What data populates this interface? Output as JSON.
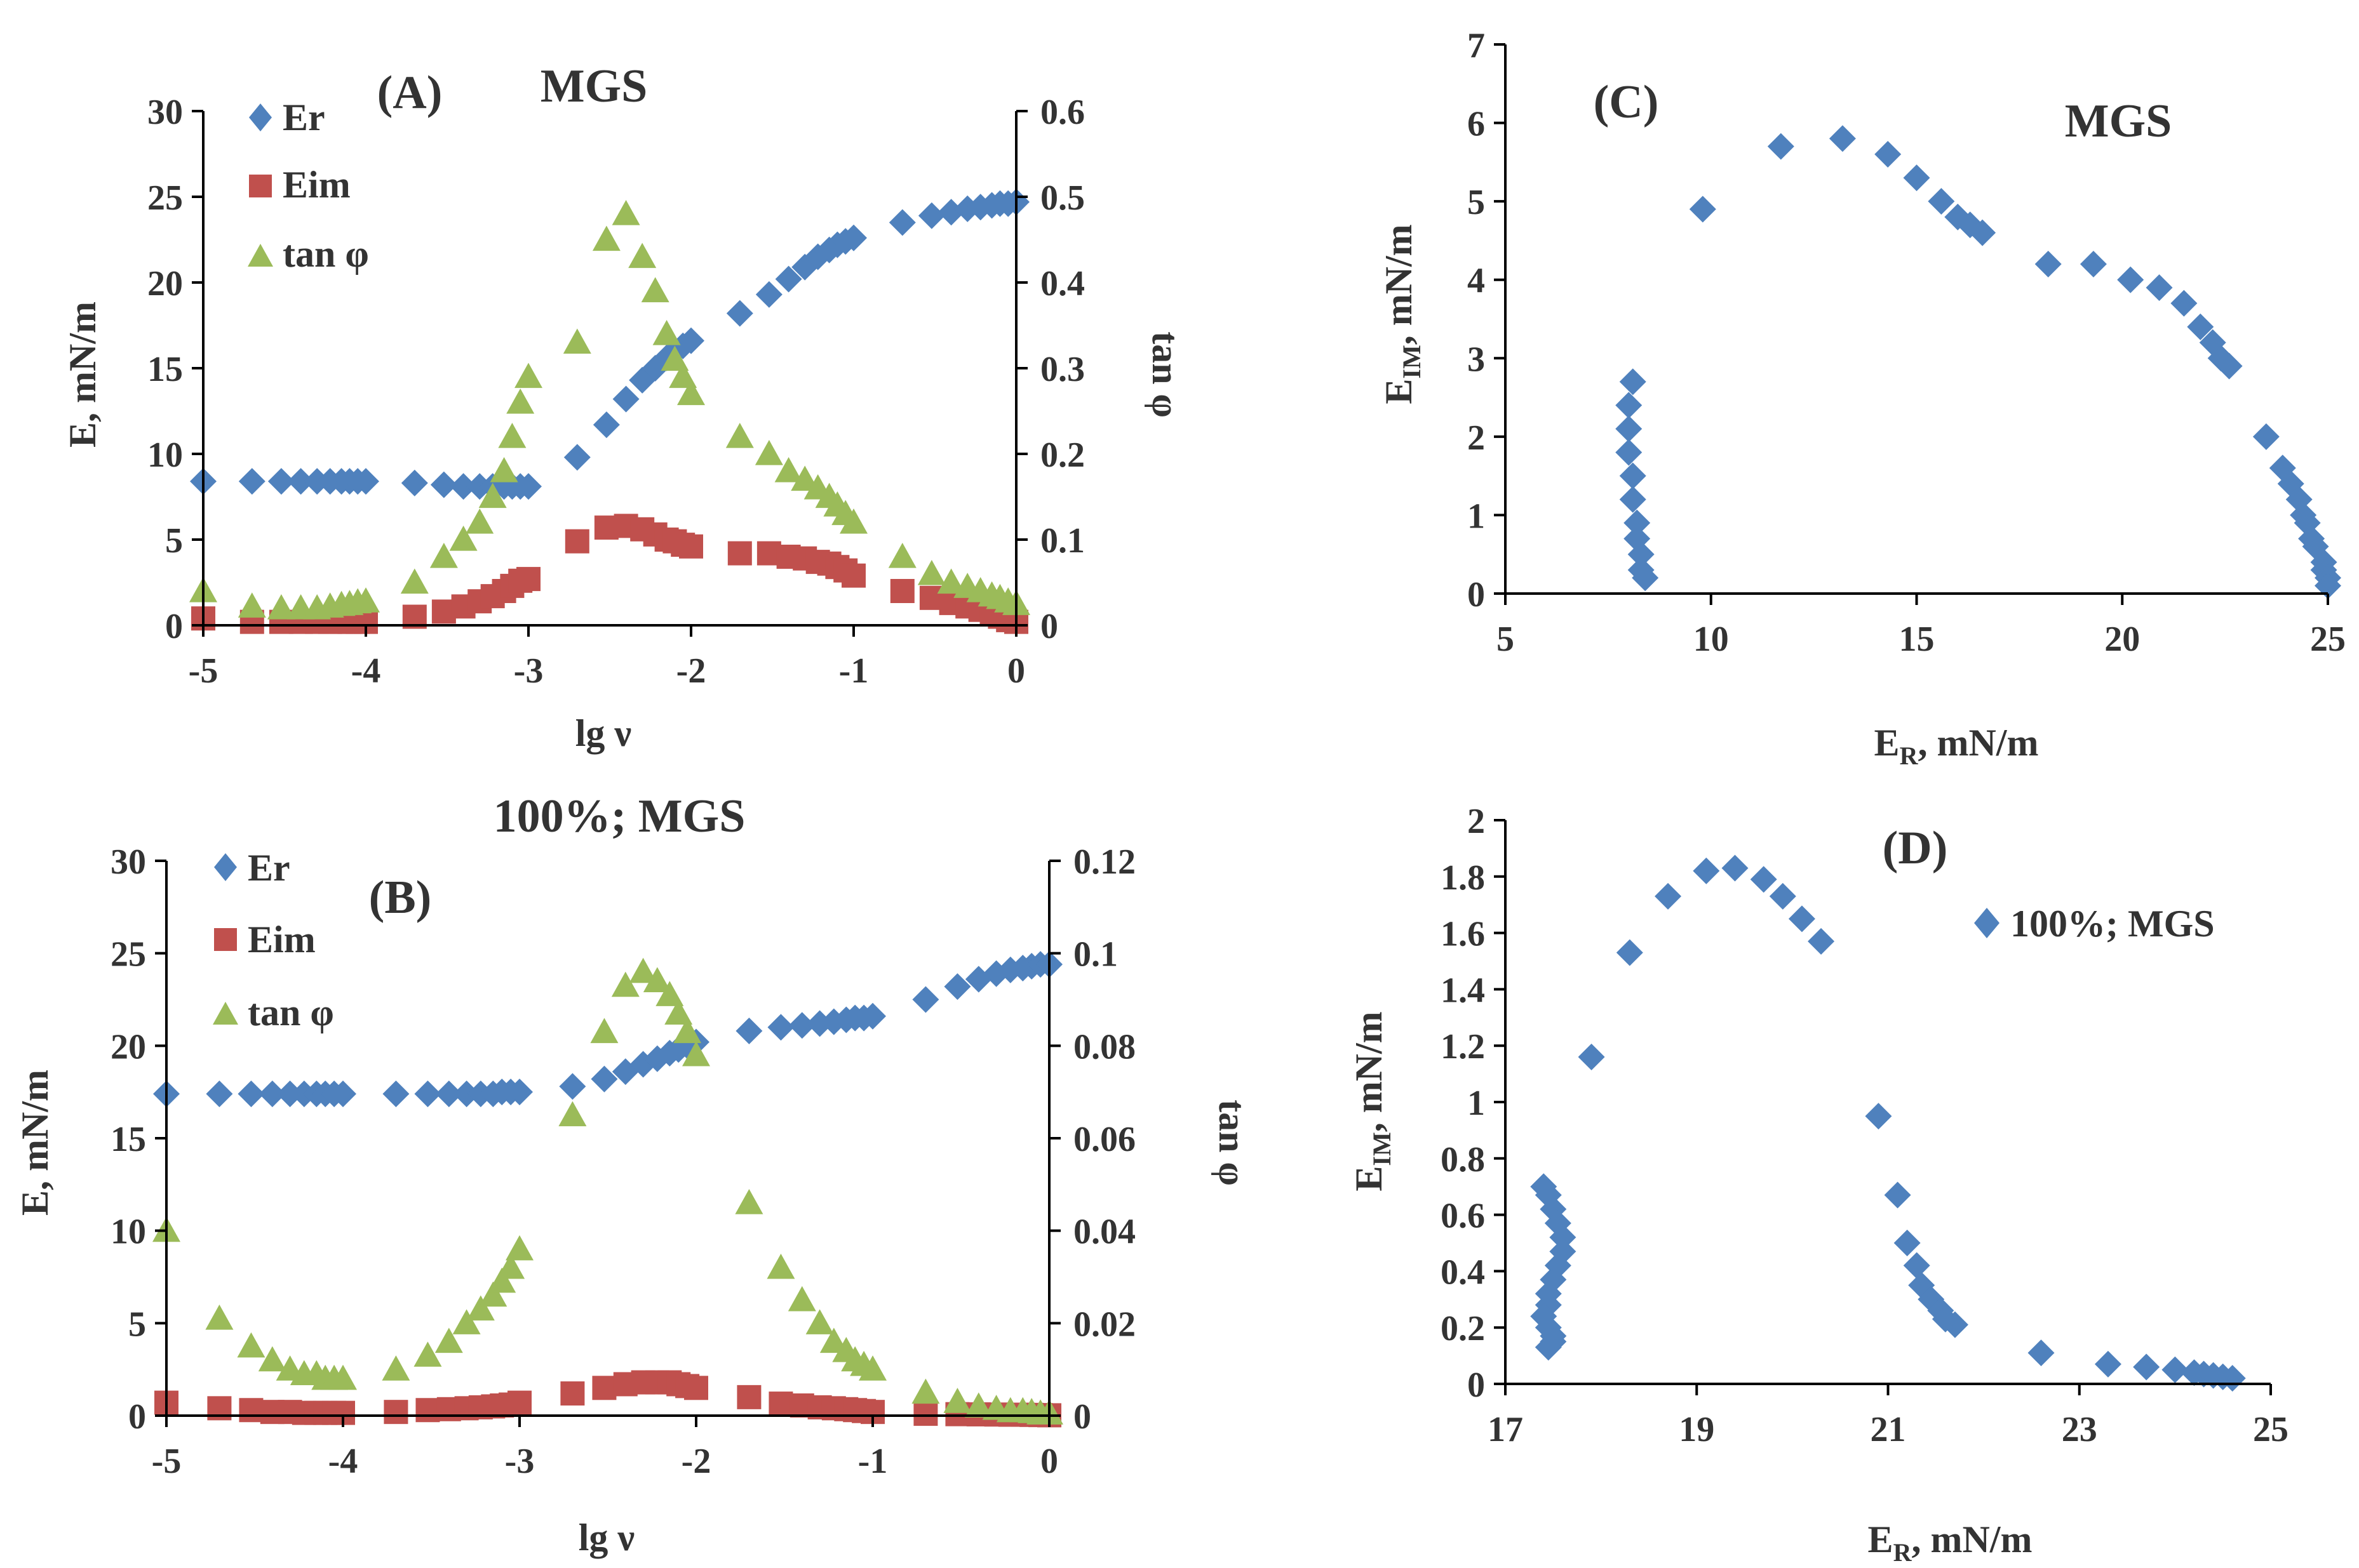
{
  "colors": {
    "er": "#4f81bd",
    "eim": "#c0504d",
    "tan": "#9bbb59",
    "text": "#333333",
    "axis": "#000000"
  },
  "chart_data": [
    {
      "id": "A",
      "type": "scatter",
      "panel_label": "(A)",
      "title": "MGS",
      "xlabel": "lg ν",
      "ylabel": "E, mN/m",
      "y2label": "tan φ",
      "xlim": [
        -5,
        0
      ],
      "ylim": [
        0,
        30
      ],
      "y2lim": [
        0,
        0.6
      ],
      "xticks": [
        "-5",
        "-4",
        "-3",
        "-2",
        "-1",
        "0"
      ],
      "yticks": [
        "0",
        "5",
        "10",
        "15",
        "20",
        "25",
        "30"
      ],
      "y2ticks": [
        "0",
        "0.1",
        "0.2",
        "0.3",
        "0.4",
        "0.5",
        "0.6"
      ],
      "legend": [
        "Er",
        "Eim",
        "tan φ"
      ],
      "series": [
        {
          "name": "Er",
          "marker": "diamond",
          "axis": "left",
          "x": [
            -5,
            -4.7,
            -4.52,
            -4.4,
            -4.3,
            -4.22,
            -4.15,
            -4.1,
            -4.05,
            -4,
            -3.7,
            -3.52,
            -3.4,
            -3.3,
            -3.22,
            -3.15,
            -3.1,
            -3.05,
            -3,
            -2.7,
            -2.52,
            -2.4,
            -2.3,
            -2.22,
            -2.15,
            -2.1,
            -2.05,
            -2,
            -1.7,
            -1.52,
            -1.4,
            -1.3,
            -1.22,
            -1.15,
            -1.1,
            -1.05,
            -1,
            -0.7,
            -0.52,
            -0.4,
            -0.3,
            -0.22,
            -0.15,
            -0.1,
            -0.05,
            0
          ],
          "y": [
            8.4,
            8.4,
            8.4,
            8.4,
            8.4,
            8.4,
            8.4,
            8.4,
            8.4,
            8.4,
            8.3,
            8.2,
            8.1,
            8.1,
            8.1,
            8.1,
            8.1,
            8.1,
            8.1,
            9.8,
            11.7,
            13.2,
            14.3,
            15.0,
            15.6,
            16.0,
            16.3,
            16.6,
            18.2,
            19.3,
            20.2,
            20.9,
            21.5,
            21.9,
            22.2,
            22.4,
            22.6,
            23.5,
            23.9,
            24.1,
            24.3,
            24.4,
            24.5,
            24.6,
            24.6,
            24.7
          ]
        },
        {
          "name": "Eim",
          "marker": "square",
          "axis": "left",
          "x": [
            -5,
            -4.7,
            -4.52,
            -4.4,
            -4.3,
            -4.22,
            -4.15,
            -4.1,
            -4.05,
            -4,
            -3.7,
            -3.52,
            -3.4,
            -3.3,
            -3.22,
            -3.15,
            -3.1,
            -3.05,
            -3,
            -2.7,
            -2.52,
            -2.4,
            -2.3,
            -2.22,
            -2.15,
            -2.1,
            -2.05,
            -2,
            -1.7,
            -1.52,
            -1.4,
            -1.3,
            -1.22,
            -1.15,
            -1.1,
            -1.05,
            -1,
            -0.7,
            -0.52,
            -0.4,
            -0.3,
            -0.22,
            -0.15,
            -0.1,
            -0.05,
            0
          ],
          "y": [
            0.4,
            0.2,
            0.2,
            0.2,
            0.2,
            0.2,
            0.2,
            0.2,
            0.2,
            0.2,
            0.5,
            0.8,
            1.1,
            1.4,
            1.7,
            2.0,
            2.3,
            2.6,
            2.7,
            4.9,
            5.7,
            5.8,
            5.6,
            5.3,
            5.0,
            4.9,
            4.7,
            4.6,
            4.2,
            4.2,
            4.0,
            3.9,
            3.7,
            3.6,
            3.4,
            3.2,
            2.9,
            2.0,
            1.6,
            1.3,
            1.1,
            0.9,
            0.7,
            0.5,
            0.3,
            0.2
          ]
        },
        {
          "name": "tan φ",
          "marker": "triangle",
          "axis": "right",
          "x": [
            -5,
            -4.7,
            -4.52,
            -4.4,
            -4.3,
            -4.22,
            -4.15,
            -4.1,
            -4.05,
            -4,
            -3.7,
            -3.52,
            -3.4,
            -3.3,
            -3.22,
            -3.15,
            -3.1,
            -3.05,
            -3,
            -2.7,
            -2.52,
            -2.4,
            -2.3,
            -2.22,
            -2.15,
            -2.1,
            -2.05,
            -2,
            -1.7,
            -1.52,
            -1.4,
            -1.3,
            -1.22,
            -1.15,
            -1.1,
            -1.05,
            -1,
            -0.7,
            -0.52,
            -0.4,
            -0.3,
            -0.22,
            -0.15,
            -0.1,
            -0.05,
            0
          ],
          "y": [
            0.04,
            0.022,
            0.02,
            0.02,
            0.02,
            0.022,
            0.024,
            0.025,
            0.027,
            0.028,
            0.05,
            0.08,
            0.1,
            0.12,
            0.15,
            0.18,
            0.22,
            0.26,
            0.29,
            0.33,
            0.45,
            0.48,
            0.43,
            0.39,
            0.34,
            0.31,
            0.29,
            0.27,
            0.22,
            0.2,
            0.18,
            0.17,
            0.16,
            0.15,
            0.14,
            0.13,
            0.12,
            0.08,
            0.06,
            0.05,
            0.045,
            0.04,
            0.035,
            0.032,
            0.028,
            0.025
          ]
        }
      ]
    },
    {
      "id": "B",
      "type": "scatter",
      "panel_label": "(B)",
      "title": "100%; MGS",
      "xlabel": "lg ν",
      "ylabel": "E, mN/m",
      "y2label": "tan φ",
      "xlim": [
        -5,
        0
      ],
      "ylim": [
        0,
        30
      ],
      "y2lim": [
        0,
        0.12
      ],
      "xticks": [
        "-5",
        "-4",
        "-3",
        "-2",
        "-1",
        "0"
      ],
      "yticks": [
        "0",
        "5",
        "10",
        "15",
        "20",
        "25",
        "30"
      ],
      "y2ticks": [
        "0",
        "0.02",
        "0.04",
        "0.06",
        "0.08",
        "0.1",
        "0.12"
      ],
      "legend": [
        "Er",
        "Eim",
        "tan φ"
      ],
      "series": [
        {
          "name": "Er",
          "marker": "diamond",
          "axis": "left",
          "x": [
            -5,
            -4.7,
            -4.52,
            -4.4,
            -4.3,
            -4.22,
            -4.15,
            -4.1,
            -4.05,
            -4,
            -3.7,
            -3.52,
            -3.4,
            -3.3,
            -3.22,
            -3.15,
            -3.1,
            -3.05,
            -3,
            -2.7,
            -2.52,
            -2.4,
            -2.3,
            -2.22,
            -2.15,
            -2.1,
            -2.05,
            -2,
            -1.7,
            -1.52,
            -1.4,
            -1.3,
            -1.22,
            -1.15,
            -1.1,
            -1.05,
            -1,
            -0.7,
            -0.52,
            -0.4,
            -0.3,
            -0.22,
            -0.15,
            -0.1,
            -0.05,
            0
          ],
          "y": [
            17.4,
            17.4,
            17.4,
            17.4,
            17.4,
            17.4,
            17.4,
            17.4,
            17.4,
            17.4,
            17.4,
            17.4,
            17.4,
            17.4,
            17.4,
            17.4,
            17.5,
            17.5,
            17.5,
            17.8,
            18.2,
            18.6,
            19.0,
            19.3,
            19.6,
            19.8,
            20.0,
            20.2,
            20.8,
            21.0,
            21.1,
            21.2,
            21.3,
            21.4,
            21.5,
            21.5,
            21.6,
            22.5,
            23.2,
            23.6,
            23.9,
            24.1,
            24.2,
            24.3,
            24.4,
            24.4
          ]
        },
        {
          "name": "Eim",
          "marker": "square",
          "axis": "left",
          "x": [
            -5,
            -4.7,
            -4.52,
            -4.4,
            -4.3,
            -4.22,
            -4.15,
            -4.1,
            -4.05,
            -4,
            -3.7,
            -3.52,
            -3.4,
            -3.3,
            -3.22,
            -3.15,
            -3.1,
            -3.05,
            -3,
            -2.7,
            -2.52,
            -2.4,
            -2.3,
            -2.22,
            -2.15,
            -2.1,
            -2.05,
            -2,
            -1.7,
            -1.52,
            -1.4,
            -1.3,
            -1.22,
            -1.15,
            -1.1,
            -1.05,
            -1,
            -0.7,
            -0.52,
            -0.4,
            -0.3,
            -0.22,
            -0.15,
            -0.1,
            -0.05,
            0
          ],
          "y": [
            0.7,
            0.4,
            0.3,
            0.2,
            0.2,
            0.15,
            0.15,
            0.15,
            0.15,
            0.15,
            0.2,
            0.3,
            0.35,
            0.4,
            0.45,
            0.5,
            0.55,
            0.6,
            0.7,
            1.2,
            1.5,
            1.7,
            1.8,
            1.8,
            1.8,
            1.7,
            1.6,
            1.5,
            1.0,
            0.65,
            0.55,
            0.45,
            0.4,
            0.35,
            0.3,
            0.25,
            0.2,
            0.1,
            0.08,
            0.07,
            0.06,
            0.05,
            0.05,
            0.04,
            0.03,
            0.02
          ]
        },
        {
          "name": "tan φ",
          "marker": "triangle",
          "axis": "right",
          "x": [
            -5,
            -4.7,
            -4.52,
            -4.4,
            -4.3,
            -4.22,
            -4.15,
            -4.1,
            -4.05,
            -4,
            -3.7,
            -3.52,
            -3.4,
            -3.3,
            -3.22,
            -3.15,
            -3.1,
            -3.05,
            -3,
            -2.7,
            -2.52,
            -2.4,
            -2.3,
            -2.22,
            -2.15,
            -2.1,
            -2.05,
            -2,
            -1.7,
            -1.52,
            -1.4,
            -1.3,
            -1.22,
            -1.15,
            -1.1,
            -1.05,
            -1,
            -0.7,
            -0.52,
            -0.4,
            -0.3,
            -0.22,
            -0.15,
            -0.1,
            -0.05,
            0
          ],
          "y": [
            0.04,
            0.021,
            0.015,
            0.012,
            0.01,
            0.009,
            0.009,
            0.008,
            0.008,
            0.008,
            0.01,
            0.013,
            0.016,
            0.02,
            0.023,
            0.026,
            0.029,
            0.032,
            0.036,
            0.065,
            0.083,
            0.093,
            0.096,
            0.094,
            0.091,
            0.087,
            0.083,
            0.078,
            0.046,
            0.032,
            0.025,
            0.02,
            0.016,
            0.014,
            0.012,
            0.011,
            0.01,
            0.005,
            0.003,
            0.002,
            0.0015,
            0.001,
            0.001,
            0.0008,
            0.0005,
            0.0005
          ]
        }
      ]
    },
    {
      "id": "C",
      "type": "scatter",
      "panel_label": "(C)",
      "title": "MGS",
      "xlabel_main": "E",
      "xlabel_sub": "R",
      "xlabel_tail": ", mN/m",
      "ylabel_main": "E",
      "ylabel_sub": "IM",
      "ylabel_tail": ", mN/m",
      "xlim": [
        5,
        25
      ],
      "ylim": [
        0,
        7
      ],
      "xticks": [
        "5",
        "10",
        "15",
        "20",
        "25"
      ],
      "yticks": [
        "0",
        "1",
        "2",
        "3",
        "4",
        "5",
        "6",
        "7"
      ],
      "series": [
        {
          "name": "MGS",
          "marker": "diamond",
          "x": [
            8.1,
            8.0,
            8.0,
            8.0,
            8.1,
            8.1,
            8.2,
            8.2,
            8.3,
            8.3,
            8.4,
            9.8,
            11.7,
            13.2,
            14.3,
            15.0,
            15.6,
            16.0,
            16.3,
            16.6,
            18.2,
            19.3,
            20.2,
            20.9,
            21.5,
            21.9,
            22.2,
            22.4,
            22.6,
            23.5,
            23.9,
            24.1,
            24.3,
            24.4,
            24.5,
            24.6,
            24.7,
            24.9,
            24.9,
            25.0,
            25.0
          ],
          "y": [
            2.7,
            2.4,
            2.1,
            1.8,
            1.5,
            1.2,
            0.9,
            0.7,
            0.5,
            0.3,
            0.2,
            4.9,
            5.7,
            5.8,
            5.6,
            5.3,
            5.0,
            4.8,
            4.7,
            4.6,
            4.2,
            4.2,
            4.0,
            3.9,
            3.7,
            3.4,
            3.2,
            3.0,
            2.9,
            2.0,
            1.6,
            1.4,
            1.2,
            1.0,
            0.9,
            0.7,
            0.6,
            0.4,
            0.3,
            0.2,
            0.1
          ]
        }
      ]
    },
    {
      "id": "D",
      "type": "scatter",
      "panel_label": "(D)",
      "legend": [
        "100%; MGS"
      ],
      "xlabel_main": "E",
      "xlabel_sub": "R",
      "xlabel_tail": ", mN/m",
      "ylabel_main": "E",
      "ylabel_sub": "IM",
      "ylabel_tail": ", mN/m",
      "xlim": [
        17,
        25
      ],
      "ylim": [
        0,
        2
      ],
      "xticks": [
        "17",
        "19",
        "21",
        "23",
        "25"
      ],
      "yticks": [
        "0",
        "0.2",
        "0.4",
        "0.6",
        "0.8",
        "1",
        "1.2",
        "1.4",
        "1.6",
        "1.8",
        "2"
      ],
      "series": [
        {
          "name": "100%; MGS",
          "marker": "diamond",
          "x": [
            17.4,
            17.45,
            17.5,
            17.55,
            17.6,
            17.6,
            17.55,
            17.5,
            17.45,
            17.45,
            17.4,
            17.45,
            17.5,
            17.5,
            17.45,
            17.9,
            18.3,
            18.7,
            19.1,
            19.4,
            19.7,
            19.9,
            20.1,
            20.3,
            20.9,
            21.1,
            21.2,
            21.3,
            21.35,
            21.45,
            21.55,
            21.6,
            21.7,
            22.6,
            23.3,
            23.7,
            24.0,
            24.2,
            24.3,
            24.4,
            24.5,
            24.6
          ],
          "y": [
            0.7,
            0.67,
            0.62,
            0.57,
            0.52,
            0.47,
            0.42,
            0.37,
            0.32,
            0.28,
            0.24,
            0.2,
            0.17,
            0.15,
            0.13,
            1.16,
            1.53,
            1.73,
            1.82,
            1.83,
            1.79,
            1.73,
            1.65,
            1.57,
            0.95,
            0.67,
            0.5,
            0.42,
            0.35,
            0.3,
            0.26,
            0.23,
            0.21,
            0.11,
            0.07,
            0.06,
            0.05,
            0.04,
            0.035,
            0.03,
            0.025,
            0.02
          ]
        }
      ]
    }
  ]
}
